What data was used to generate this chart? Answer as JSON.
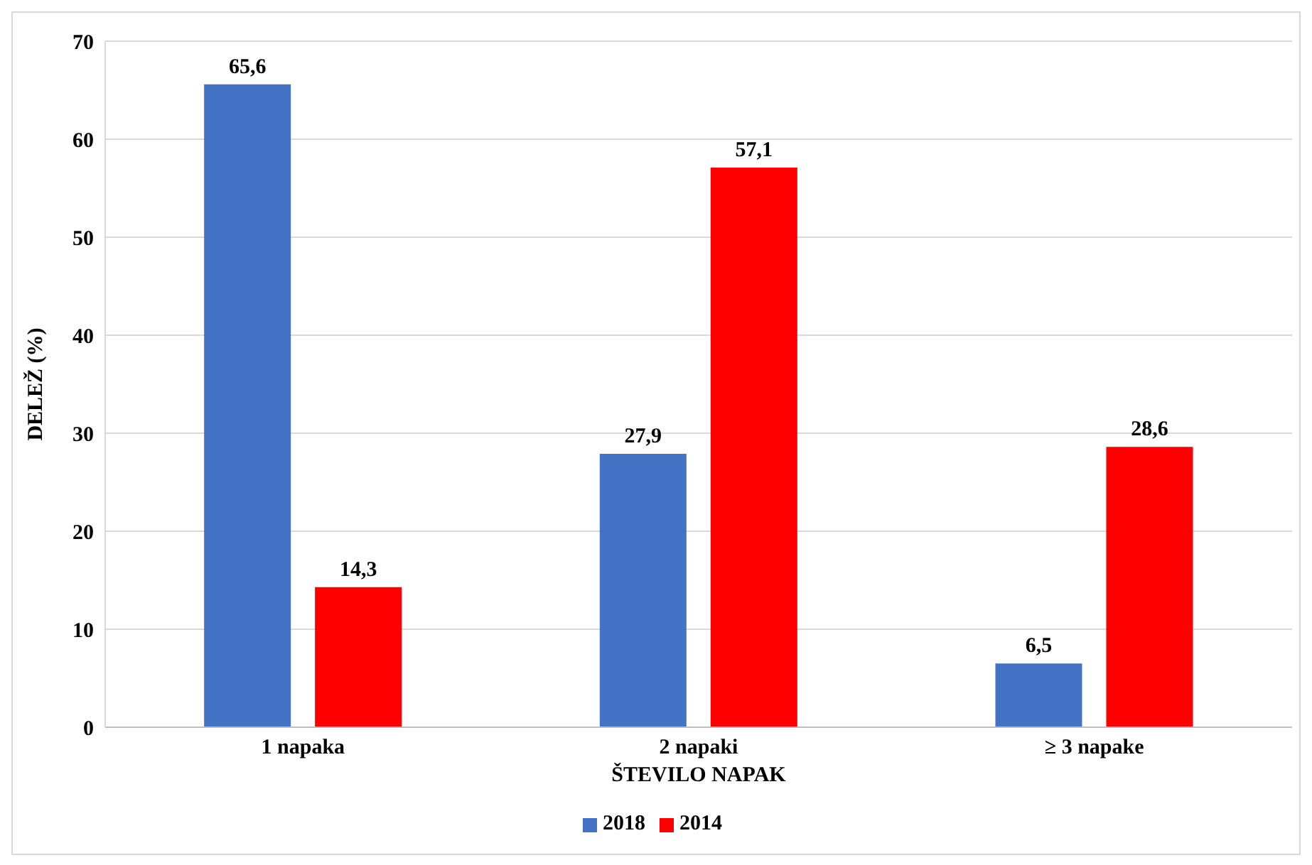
{
  "chart_data": {
    "type": "bar",
    "xlabel": "ŠTEVILO NAPAK",
    "ylabel": "DELEŽ  (%)",
    "categories": [
      "1 napaka",
      "2 napaki",
      "≥ 3 napake"
    ],
    "series": [
      {
        "name": "2018",
        "color": "#4472c4",
        "values": [
          65.6,
          27.9,
          6.5
        ],
        "value_labels": [
          "65,6",
          "27,9",
          "6,5"
        ]
      },
      {
        "name": "2014",
        "color": "#ff0000",
        "values": [
          14.3,
          57.1,
          28.6
        ],
        "value_labels": [
          "14,3",
          "57,1",
          "28,6"
        ]
      }
    ],
    "ylim": [
      0,
      70
    ],
    "yticks": [
      0,
      10,
      20,
      30,
      40,
      50,
      60,
      70
    ],
    "grid": "y",
    "legend": "bottom"
  }
}
